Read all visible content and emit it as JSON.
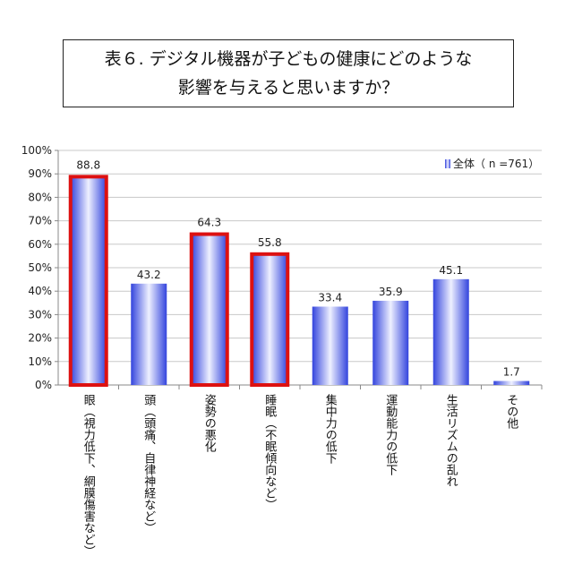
{
  "chart_data": {
    "type": "bar",
    "title": [
      "表６. デジタル機器が子どもの健康にどのような",
      "影響を与えると思いますか？"
    ],
    "categories": [
      "眼（視力低下、網膜傷害など）",
      "頭（頭痛、自律神経など）",
      "姿勢の悪化",
      "睡眠（不眠傾向など）",
      "集中力の低下",
      "運動能力の低下",
      "生活リズムの乱れ",
      "その他"
    ],
    "series": [
      {
        "name": "全体（ n =761）",
        "values": [
          88.8,
          43.2,
          64.3,
          55.8,
          33.4,
          35.9,
          45.1,
          1.7
        ]
      }
    ],
    "value_labels": [
      "88.8",
      "43.2",
      "64.3",
      "55.8",
      "33.4",
      "35.9",
      "45.1",
      "1.7"
    ],
    "highlighted": [
      0,
      2,
      3
    ],
    "ylim": [
      0,
      100
    ],
    "yticks": [
      "0%",
      "10%",
      "20%",
      "30%",
      "40%",
      "50%",
      "60%",
      "70%",
      "80%",
      "90%",
      "100%"
    ],
    "grid": true,
    "legend_position": "top-right",
    "colors": {
      "bar": "#3344dd",
      "highlight": "#dd1111",
      "grid": "#c8c8c8"
    }
  }
}
